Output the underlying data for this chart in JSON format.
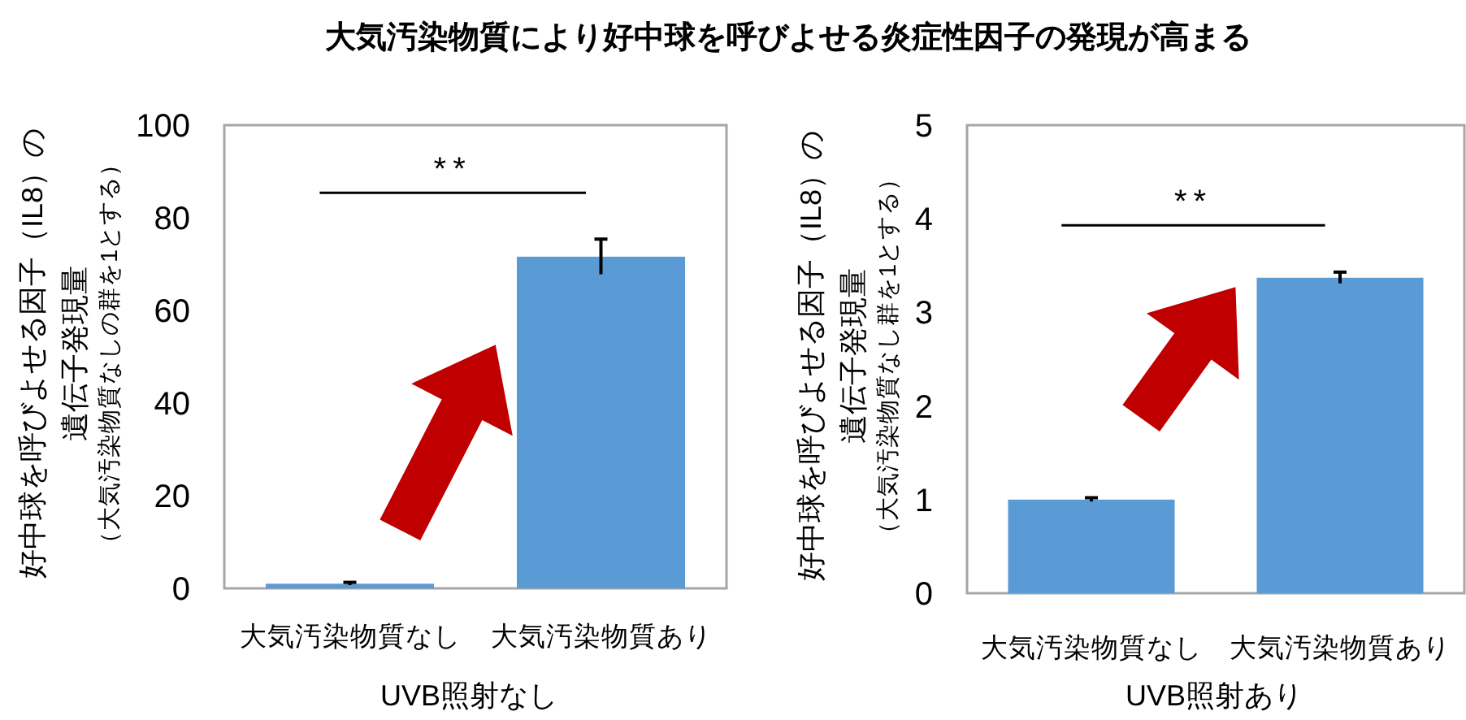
{
  "chart_data": [
    {
      "type": "bar",
      "title": "大気汚染物質により好中球を呼びよせる炎症性因子の発現が高まる",
      "categories": [
        "大気汚染物質なし",
        "大気汚染物質あり"
      ],
      "values": [
        1,
        71.6
      ],
      "errors": [
        0.3,
        3.8
      ],
      "color": "#5b9bd5",
      "ylim": [
        0,
        100
      ],
      "yticks": [
        0,
        20,
        40,
        60,
        80,
        100
      ],
      "ylabel": "好中球を呼びよせる因子（IL8）の遺伝子発現量（大気汚染物質なしの群を1とする）",
      "xlabel": "UVB照射なし",
      "annotations": [
        "**"
      ],
      "grid": false
    },
    {
      "type": "bar",
      "categories": [
        "大気汚染物質なし",
        "大気汚染物質あり"
      ],
      "values": [
        1,
        3.37
      ],
      "errors": [
        0.02,
        0.06
      ],
      "color": "#5b9bd5",
      "ylim": [
        0,
        5
      ],
      "yticks": [
        0,
        1,
        2,
        3,
        4,
        5
      ],
      "ylabel": "好中球を呼びよせる因子（IL8）の遺伝子発現量（大気汚染物質なし群を1とする）",
      "xlabel": "UVB照射あり",
      "annotations": [
        "**"
      ],
      "grid": false
    }
  ]
}
